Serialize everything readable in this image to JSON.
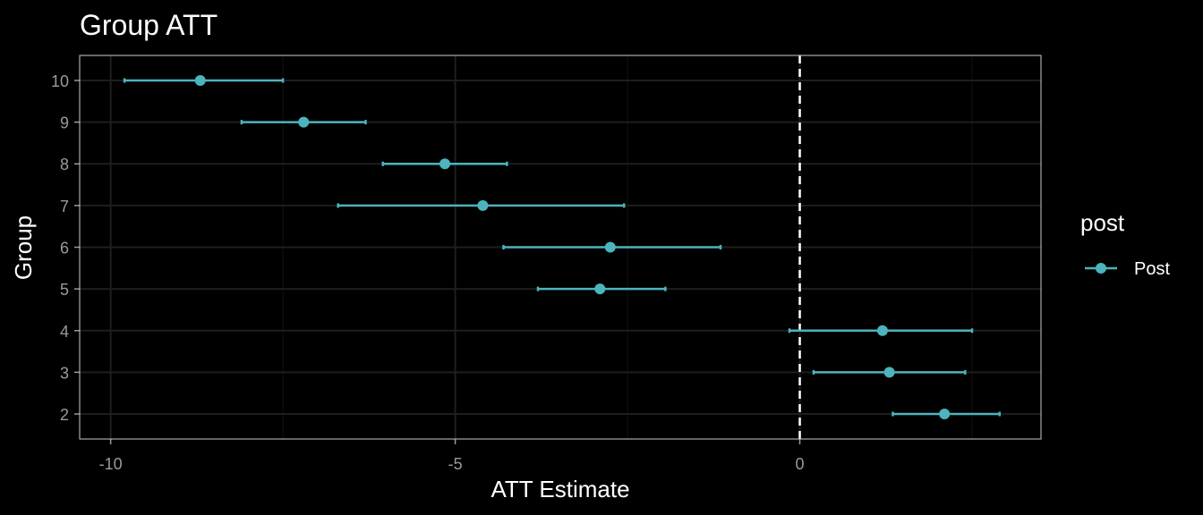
{
  "chart_data": {
    "type": "scatter",
    "title": "Group ATT",
    "xlabel": "ATT Estimate",
    "ylabel": "Group",
    "xlim": [
      -10.45,
      3.5
    ],
    "ylim": [
      1.4,
      10.6
    ],
    "x_ticks": [
      -10,
      -5,
      0
    ],
    "x_tick_labels": [
      "-10",
      "-5",
      "0"
    ],
    "y_ticks": [
      2,
      3,
      4,
      5,
      6,
      7,
      8,
      9,
      10
    ],
    "y_tick_labels": [
      "2",
      "3",
      "4",
      "5",
      "6",
      "7",
      "8",
      "9",
      "10"
    ],
    "reference_line_x": 0,
    "grid": true,
    "legend": {
      "title": "post",
      "position": "right",
      "entries": [
        "Post"
      ]
    },
    "colors": {
      "series": "#4db3bd",
      "background": "#000000",
      "panel_border": "#cccccc",
      "grid_major": "#1e1e1e",
      "grid_minor": "#121212",
      "reference_line": "#ffffff"
    },
    "series": [
      {
        "name": "Post",
        "points": [
          {
            "group": 10,
            "estimate": -8.7,
            "ci_low": -9.8,
            "ci_high": -7.5
          },
          {
            "group": 9,
            "estimate": -7.2,
            "ci_low": -8.1,
            "ci_high": -6.3
          },
          {
            "group": 8,
            "estimate": -5.15,
            "ci_low": -6.05,
            "ci_high": -4.25
          },
          {
            "group": 7,
            "estimate": -4.6,
            "ci_low": -6.7,
            "ci_high": -2.55
          },
          {
            "group": 6,
            "estimate": -2.75,
            "ci_low": -4.3,
            "ci_high": -1.15
          },
          {
            "group": 5,
            "estimate": -2.9,
            "ci_low": -3.8,
            "ci_high": -1.95
          },
          {
            "group": 4,
            "estimate": 1.2,
            "ci_low": -0.15,
            "ci_high": 2.5
          },
          {
            "group": 3,
            "estimate": 1.3,
            "ci_low": 0.2,
            "ci_high": 2.4
          },
          {
            "group": 2,
            "estimate": 2.1,
            "ci_low": 1.35,
            "ci_high": 2.9
          }
        ]
      }
    ]
  }
}
